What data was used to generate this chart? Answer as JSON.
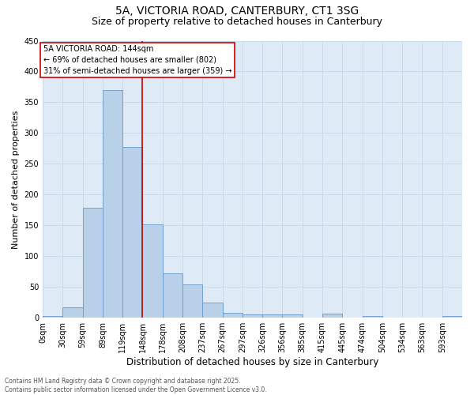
{
  "title_line1": "5A, VICTORIA ROAD, CANTERBURY, CT1 3SG",
  "title_line2": "Size of property relative to detached houses in Canterbury",
  "xlabel": "Distribution of detached houses by size in Canterbury",
  "ylabel": "Number of detached properties",
  "bin_labels": [
    "0sqm",
    "30sqm",
    "59sqm",
    "89sqm",
    "119sqm",
    "148sqm",
    "178sqm",
    "208sqm",
    "237sqm",
    "267sqm",
    "297sqm",
    "326sqm",
    "356sqm",
    "385sqm",
    "415sqm",
    "445sqm",
    "474sqm",
    "504sqm",
    "534sqm",
    "563sqm",
    "593sqm"
  ],
  "bin_edges": [
    0,
    29.5,
    59,
    88.5,
    118,
    147.5,
    177,
    206.5,
    236,
    265.5,
    295,
    324.5,
    354,
    383.5,
    413,
    442.5,
    472,
    501.5,
    531,
    560.5,
    590,
    619.5
  ],
  "bar_heights": [
    3,
    17,
    178,
    370,
    278,
    152,
    72,
    54,
    25,
    8,
    5,
    6,
    6,
    0,
    7,
    0,
    3,
    0,
    0,
    0,
    3
  ],
  "bar_color": "#b8d0e8",
  "bar_edge_color": "#6699cc",
  "vline_x": 147.5,
  "vline_color": "#cc0000",
  "annotation_text": "5A VICTORIA ROAD: 144sqm\n← 69% of detached houses are smaller (802)\n31% of semi-detached houses are larger (359) →",
  "annotation_box_color": "#cc0000",
  "annotation_text_color": "black",
  "annotation_box_fill": "white",
  "ylim": [
    0,
    450
  ],
  "yticks": [
    0,
    50,
    100,
    150,
    200,
    250,
    300,
    350,
    400,
    450
  ],
  "grid_color": "#c8daea",
  "background_color": "#deeaf6",
  "footer_text": "Contains HM Land Registry data © Crown copyright and database right 2025.\nContains public sector information licensed under the Open Government Licence v3.0.",
  "title_fontsize": 10,
  "subtitle_fontsize": 9,
  "tick_fontsize": 7,
  "ylabel_fontsize": 8,
  "xlabel_fontsize": 8.5,
  "annot_fontsize": 7
}
